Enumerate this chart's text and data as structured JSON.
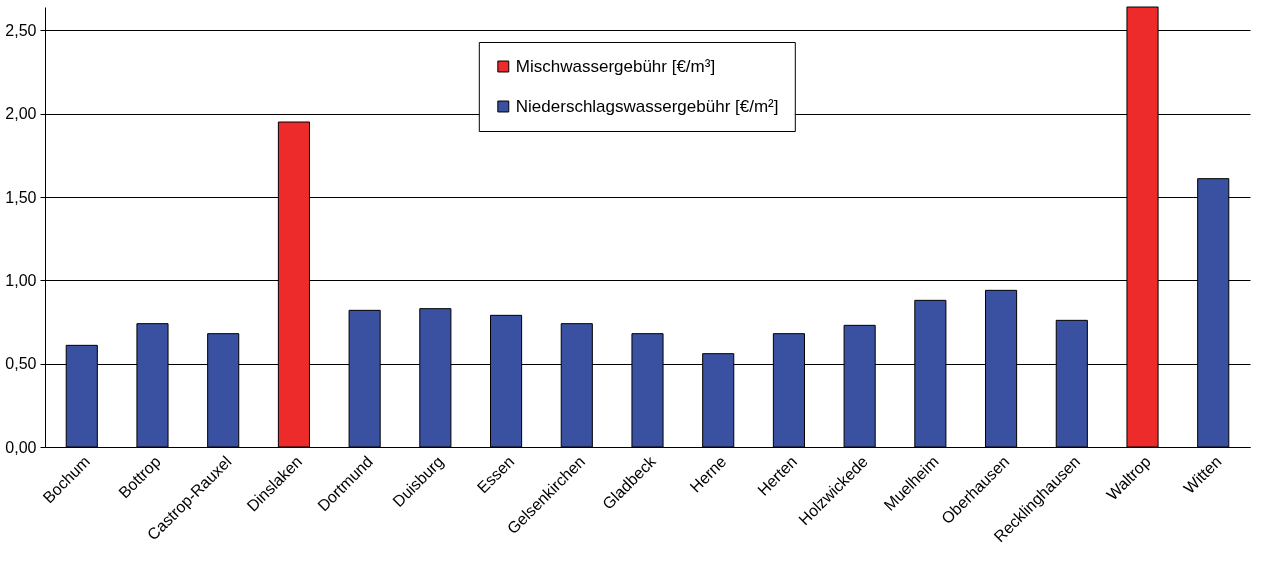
{
  "chart_data": {
    "type": "bar",
    "categories": [
      "Bochum",
      "Bottrop",
      "Castrop-Rauxel",
      "Dinslaken",
      "Dortmund",
      "Duisburg",
      "Essen",
      "Gelsenkirchen",
      "Gladbeck",
      "Herne",
      "Herten",
      "Holzwickede",
      "Muelheim",
      "Oberhausen",
      "Recklinghausen",
      "Waltrop",
      "Witten"
    ],
    "series": [
      {
        "name": "Mischwassergebühr [€/m³]",
        "color": "#ee2b2b",
        "values": [
          null,
          null,
          null,
          1.95,
          null,
          null,
          null,
          null,
          null,
          null,
          null,
          null,
          null,
          null,
          null,
          2.64,
          null
        ]
      },
      {
        "name": "Niederschlagswassergebühr [€/m²]",
        "color": "#3a50a0",
        "values": [
          0.61,
          0.74,
          0.68,
          null,
          0.82,
          0.83,
          0.79,
          0.74,
          0.68,
          0.56,
          0.68,
          0.73,
          0.88,
          0.94,
          0.76,
          null,
          1.61
        ]
      }
    ],
    "ylim": [
      0,
      2.64
    ],
    "yticks": [
      {
        "value": 0,
        "label": "0,00"
      },
      {
        "value": 0.5,
        "label": "0,50"
      },
      {
        "value": 1,
        "label": "1,00"
      },
      {
        "value": 1.5,
        "label": "1,50"
      },
      {
        "value": 2,
        "label": "2,00"
      },
      {
        "value": 2.5,
        "label": "2,50"
      }
    ],
    "grid": "y",
    "legend": "top"
  }
}
